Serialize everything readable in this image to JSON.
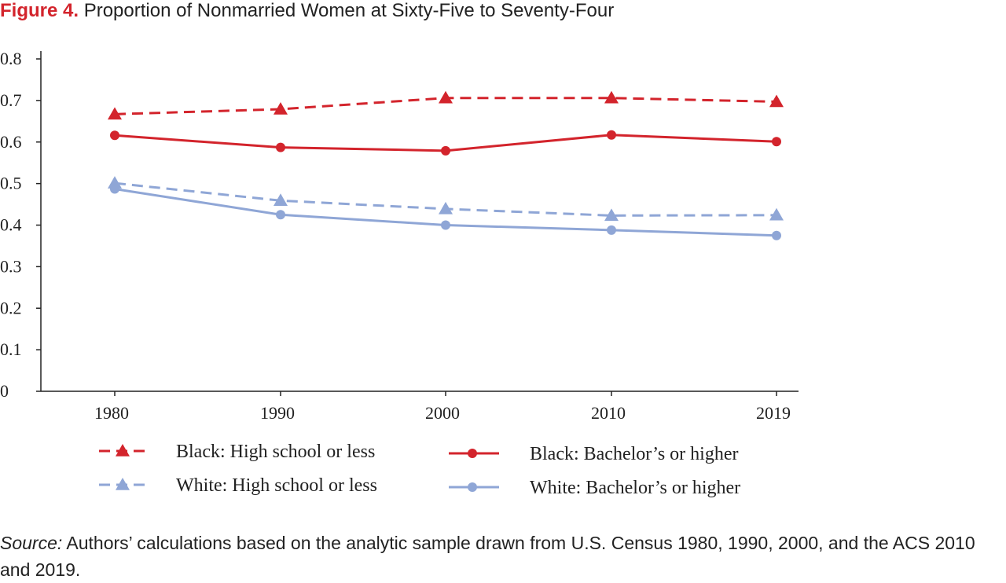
{
  "figure": {
    "label": "Figure 4.",
    "title": "Proportion of Nonmarried Women at Sixty-Five to Seventy-Four"
  },
  "source": {
    "label": "Source:",
    "text": "Authors’ calculations based on the analytic sample drawn from U.S. Census 1980, 1990, 2000, and the ACS 2010 and 2019."
  },
  "colors": {
    "red": "#d3242c",
    "blue": "#8fa6d6",
    "title_accent": "#d3242c"
  },
  "chart_data": {
    "type": "line",
    "title": "Proportion of Nonmarried Women at Sixty-Five to Seventy-Four",
    "xlabel": "",
    "ylabel": "",
    "categories": [
      "1980",
      "1990",
      "2000",
      "2010",
      "2019"
    ],
    "y_ticks": [
      "0",
      "0.1",
      "0.2",
      "0.3",
      "0.4",
      "0.5",
      "0.6",
      "0.7",
      "0.8"
    ],
    "ylim": [
      0,
      0.8
    ],
    "grid": false,
    "legend_position": "bottom",
    "series": [
      {
        "name": "Black: High school or less",
        "values": [
          0.667,
          0.679,
          0.706,
          0.706,
          0.697
        ],
        "color": "#d3242c",
        "dash": true,
        "marker": "triangle"
      },
      {
        "name": "Black: Bachelor’s or higher",
        "values": [
          0.616,
          0.587,
          0.579,
          0.617,
          0.601
        ],
        "color": "#d3242c",
        "dash": false,
        "marker": "circle"
      },
      {
        "name": "White: High school or less",
        "values": [
          0.501,
          0.459,
          0.439,
          0.423,
          0.424
        ],
        "color": "#8fa6d6",
        "dash": true,
        "marker": "triangle"
      },
      {
        "name": "White: Bachelor’s or higher",
        "values": [
          0.487,
          0.425,
          0.4,
          0.388,
          0.375
        ],
        "color": "#8fa6d6",
        "dash": false,
        "marker": "circle"
      }
    ]
  }
}
